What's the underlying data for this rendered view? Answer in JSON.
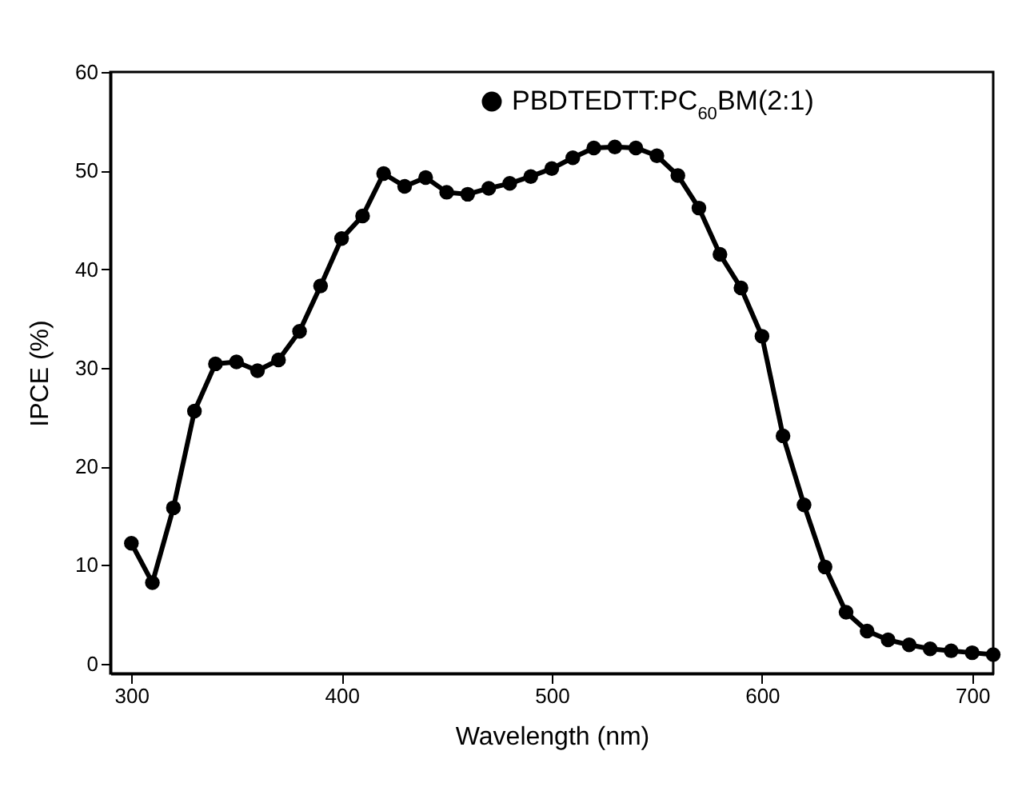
{
  "chart_data": {
    "type": "line",
    "xlabel": "Wavelength (nm)",
    "ylabel": "IPCE (%)",
    "x": [
      300,
      310,
      320,
      330,
      340,
      350,
      360,
      370,
      380,
      390,
      400,
      410,
      420,
      430,
      440,
      450,
      460,
      470,
      480,
      490,
      500,
      510,
      520,
      530,
      540,
      550,
      560,
      570,
      580,
      590,
      600,
      610,
      620,
      630,
      640,
      650,
      660,
      670,
      680,
      690,
      700,
      710
    ],
    "series": [
      {
        "name": "PBDTEDTT:PC$_{60}$BM(2:1)",
        "color": "#000000",
        "values": [
          12.2,
          8.2,
          15.8,
          25.6,
          30.4,
          30.6,
          29.7,
          30.8,
          33.7,
          38.3,
          43.1,
          45.4,
          49.7,
          48.4,
          49.3,
          47.8,
          47.6,
          48.2,
          48.7,
          49.4,
          50.2,
          51.3,
          52.3,
          52.4,
          52.3,
          51.5,
          49.5,
          46.2,
          41.5,
          38.1,
          33.2,
          23.1,
          16.1,
          9.8,
          5.2,
          3.3,
          2.4,
          1.9,
          1.5,
          1.3,
          1.1,
          0.9
        ]
      }
    ],
    "xlim": [
      290,
      710
    ],
    "xticks": [
      300,
      400,
      500,
      600,
      700
    ],
    "ylim": [
      -1,
      60
    ],
    "yticks": [
      0,
      10,
      20,
      30,
      40,
      50,
      60
    ],
    "grid": false,
    "legend": "top",
    "marker": "circle",
    "line_style": "solid"
  }
}
